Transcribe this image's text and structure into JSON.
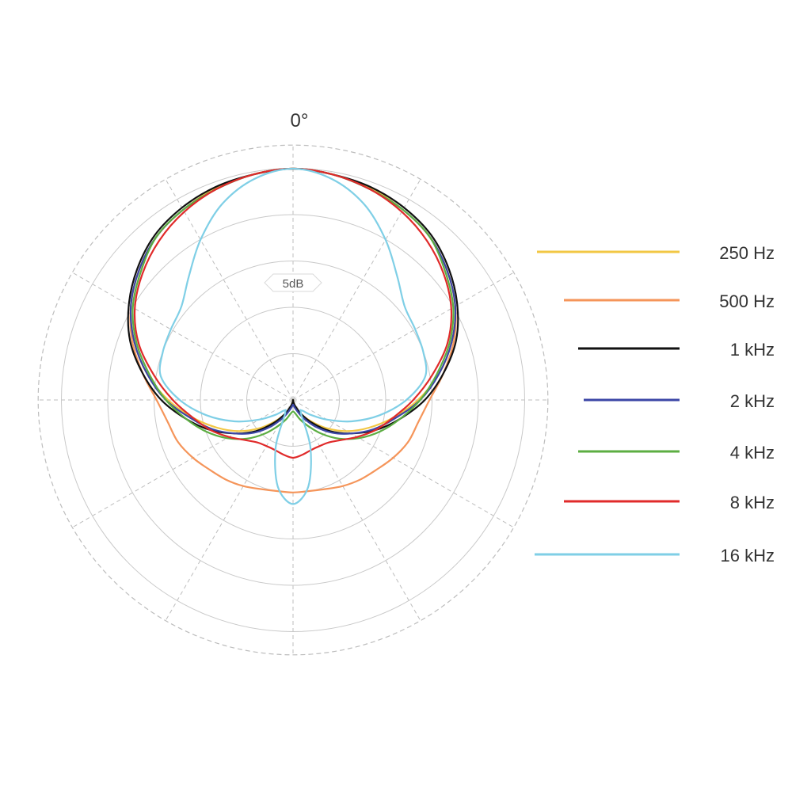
{
  "chart_data": {
    "type": "polar",
    "title": "",
    "angle_label": "0°",
    "scale_label": "5dB",
    "rings": 5,
    "colors": {
      "grid_solid": "#c9c9c9",
      "grid_dashed": "#bdbdbd"
    },
    "series": [
      {
        "name": "250 Hz",
        "color": "#f2c744",
        "r": [
          1.0,
          0.99,
          0.975,
          0.95,
          0.92,
          0.87,
          0.81,
          0.73,
          0.64,
          0.54,
          0.44,
          0.35,
          0.27,
          0.19,
          0.12,
          0.07,
          0.03,
          0.01,
          0.0
        ]
      },
      {
        "name": "500 Hz",
        "color": "#f5955a",
        "r": [
          1.0,
          0.99,
          0.97,
          0.95,
          0.92,
          0.87,
          0.81,
          0.74,
          0.66,
          0.59,
          0.55,
          0.53,
          0.5,
          0.47,
          0.45,
          0.43,
          0.41,
          0.4,
          0.4
        ]
      },
      {
        "name": "1 kHz",
        "color": "#111111",
        "r": [
          1.0,
          0.99,
          0.98,
          0.96,
          0.93,
          0.88,
          0.82,
          0.75,
          0.66,
          0.57,
          0.47,
          0.38,
          0.29,
          0.21,
          0.13,
          0.07,
          0.03,
          0.01,
          0.0
        ]
      },
      {
        "name": "2 kHz",
        "color": "#3b46a6",
        "r": [
          1.0,
          0.99,
          0.97,
          0.95,
          0.92,
          0.87,
          0.81,
          0.73,
          0.64,
          0.55,
          0.45,
          0.37,
          0.29,
          0.22,
          0.15,
          0.09,
          0.05,
          0.03,
          0.02
        ]
      },
      {
        "name": "4 kHz",
        "color": "#5cae42",
        "r": [
          1.0,
          0.99,
          0.97,
          0.95,
          0.92,
          0.86,
          0.8,
          0.72,
          0.63,
          0.55,
          0.47,
          0.4,
          0.33,
          0.26,
          0.19,
          0.13,
          0.09,
          0.06,
          0.05
        ]
      },
      {
        "name": "8 kHz",
        "color": "#e02a2a",
        "r": [
          1.0,
          0.99,
          0.97,
          0.94,
          0.9,
          0.85,
          0.79,
          0.71,
          0.61,
          0.52,
          0.44,
          0.38,
          0.32,
          0.27,
          0.24,
          0.23,
          0.23,
          0.24,
          0.25
        ]
      },
      {
        "name": "16 kHz",
        "color": "#7fcfe6",
        "r": [
          1.0,
          0.97,
          0.9,
          0.8,
          0.7,
          0.63,
          0.61,
          0.6,
          0.58,
          0.49,
          0.38,
          0.27,
          0.17,
          0.1,
          0.06,
          0.07,
          0.22,
          0.38,
          0.45
        ]
      }
    ]
  }
}
